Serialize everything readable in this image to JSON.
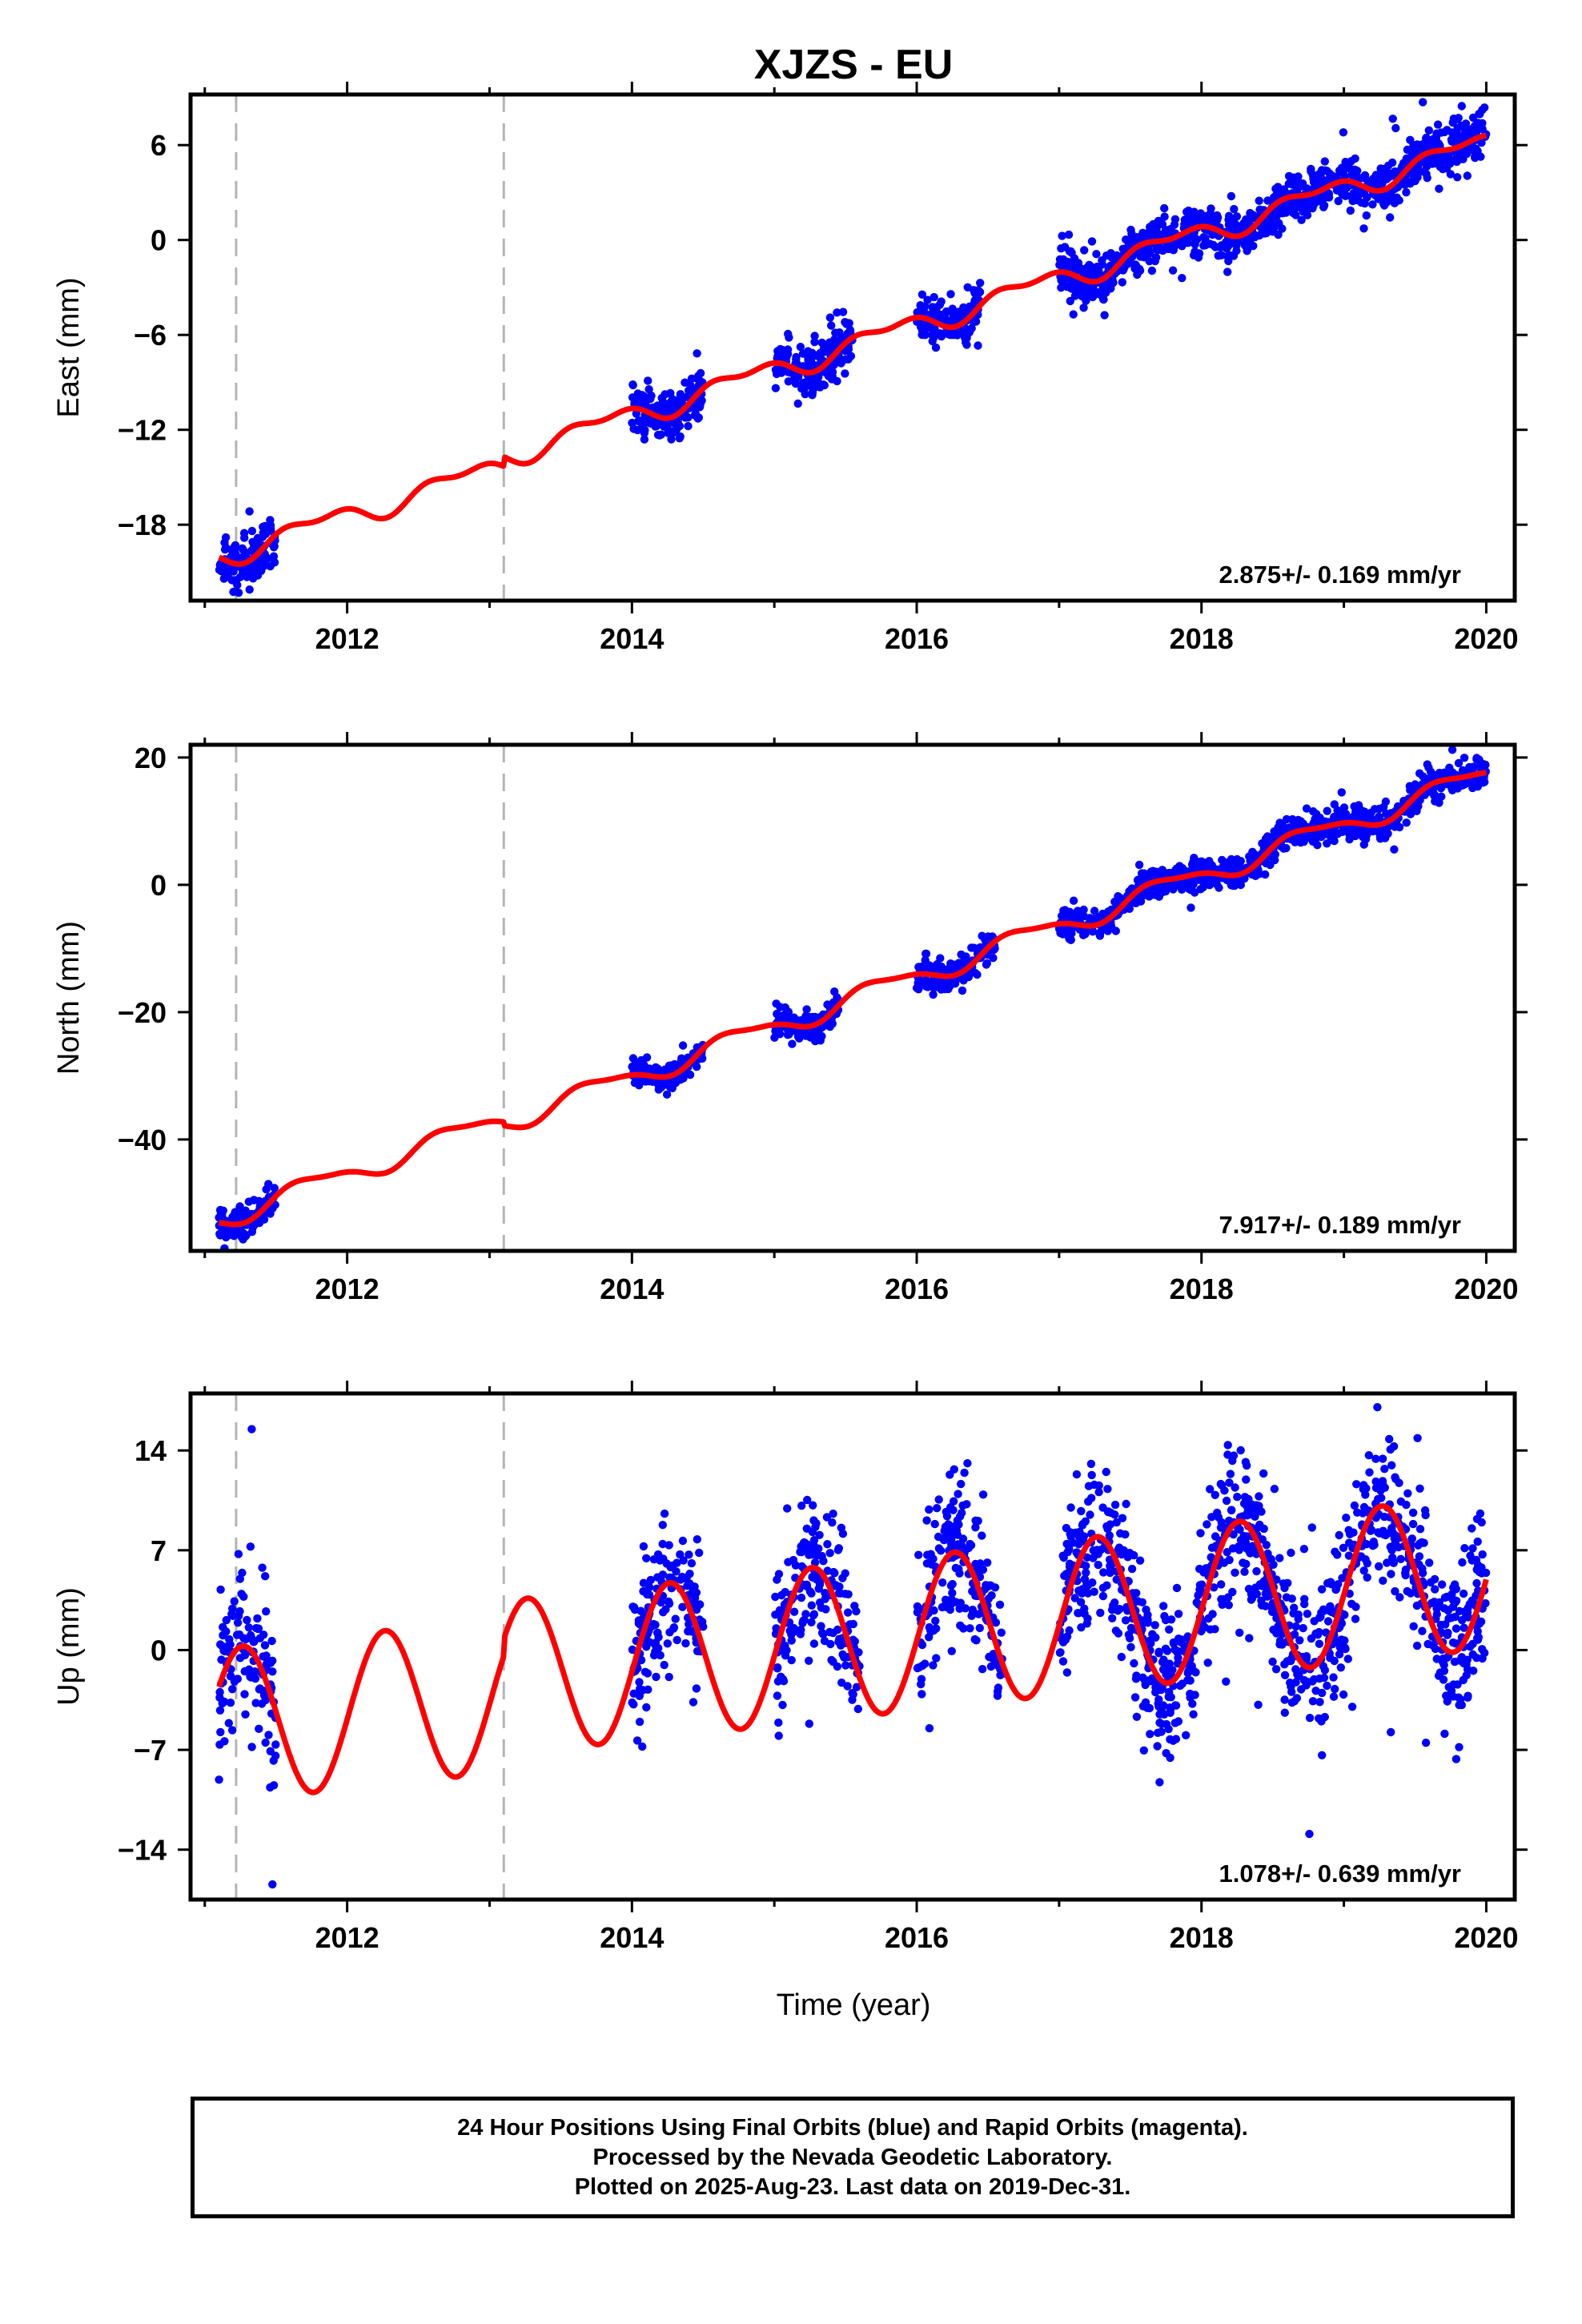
{
  "title": "XJZS - EU",
  "xlabel": "Time (year)",
  "colors": {
    "final_orbits": "#0000ff",
    "model": "#ff0000",
    "break": "#b4b4b4",
    "frame": "#000000"
  },
  "footer": {
    "line1": "24 Hour Positions Using Final Orbits (blue) and Rapid Orbits (magenta).",
    "line2": "Processed by the Nevada Geodetic Laboratory.",
    "line3": "Plotted on 2025-Aug-23. Last data on 2019-Dec-31."
  },
  "chart_data": [
    {
      "type": "scatter",
      "panel": "east",
      "ylabel": "East (mm)",
      "rate_label": "2.875+/- 0.169 mm/yr",
      "xlim": [
        2010.9,
        2020.2
      ],
      "ylim": [
        -22.8,
        9.2
      ],
      "xticks": [
        2012,
        2014,
        2016,
        2018,
        2020
      ],
      "yticks": [
        -18,
        -12,
        -6,
        0,
        6
      ],
      "breaks": [
        2011.22,
        2013.1
      ],
      "data_segments": [
        [
          2011.1,
          2011.5
        ],
        [
          2014.0,
          2014.5
        ],
        [
          2015.0,
          2015.55
        ],
        [
          2016.0,
          2016.45
        ],
        [
          2017.0,
          2020.0
        ]
      ],
      "model": {
        "x0": 2011.1,
        "y0": -20.0,
        "rate": 2.875,
        "amp_annual": 0.6,
        "phase_annual": 3.0,
        "amp_semiannual": 0.35,
        "phase_semiannual": 1.2,
        "offset_at_break2": 0.6
      },
      "scatter_sd": 0.75
    },
    {
      "type": "scatter",
      "panel": "north",
      "ylabel": "North (mm)",
      "rate_label": "7.917+/- 0.189 mm/yr",
      "xlim": [
        2010.9,
        2020.2
      ],
      "ylim": [
        -57.5,
        22.0
      ],
      "xticks": [
        2012,
        2014,
        2016,
        2018,
        2020
      ],
      "yticks": [
        -40,
        -20,
        0,
        20
      ],
      "breaks": [
        2011.22,
        2013.1
      ],
      "data_segments": [
        [
          2011.1,
          2011.5
        ],
        [
          2014.0,
          2014.5
        ],
        [
          2015.0,
          2015.45
        ],
        [
          2016.0,
          2016.55
        ],
        [
          2017.0,
          2020.0
        ]
      ],
      "model": {
        "x0": 2011.1,
        "y0": -52.5,
        "rate": 7.917,
        "amp_annual": 1.6,
        "phase_annual": 3.2,
        "amp_semiannual": 0.5,
        "phase_semiannual": 0.8,
        "offset_at_break2": -0.6
      },
      "scatter_sd": 1.1
    },
    {
      "type": "scatter",
      "panel": "up",
      "ylabel": "Up (mm)",
      "rate_label": "1.078+/- 0.639 mm/yr",
      "xlim": [
        2010.9,
        2020.2
      ],
      "ylim": [
        -17.5,
        18.0
      ],
      "xticks": [
        2012,
        2014,
        2016,
        2018,
        2020
      ],
      "yticks": [
        -14,
        -7,
        0,
        7,
        14
      ],
      "breaks": [
        2011.22,
        2013.1
      ],
      "data_segments": [
        [
          2011.1,
          2011.5
        ],
        [
          2014.0,
          2014.5
        ],
        [
          2015.0,
          2015.6
        ],
        [
          2016.0,
          2016.6
        ],
        [
          2017.0,
          2020.0
        ]
      ],
      "model": {
        "x0": 2011.1,
        "y0": -5.3,
        "rate": 1.078,
        "amp_annual": 5.4,
        "phase_annual": -0.1,
        "amp_semiannual": 0.0,
        "phase_semiannual": 0.0,
        "offset_at_break2": 1.2
      },
      "scatter_sd": 2.6
    }
  ]
}
